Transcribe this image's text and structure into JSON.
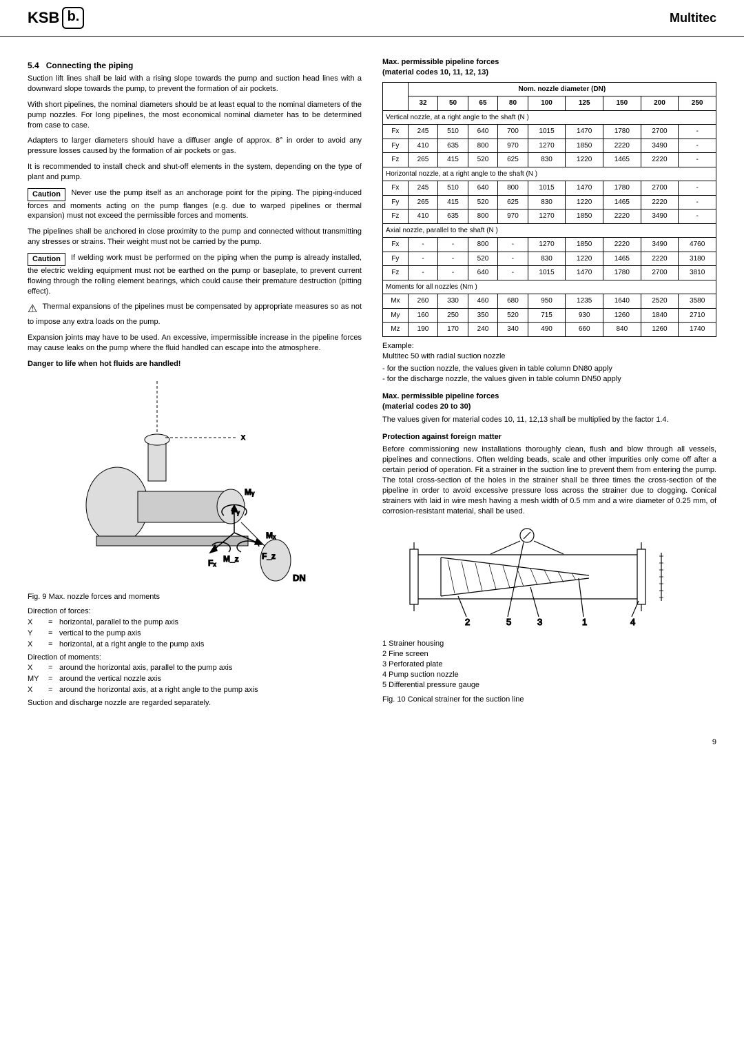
{
  "header": {
    "brand": "KSB",
    "logo_b": "b.",
    "product": "Multitec"
  },
  "left": {
    "sec_num": "5.4",
    "sec_title": "Connecting the piping",
    "p1": "Suction lift lines shall be laid with a rising slope towards the pump and suction head lines with a downward slope towards the pump, to prevent the formation of air pockets.",
    "p2": "With short pipelines, the nominal diameters should be at least equal to the nominal diameters of the pump nozzles. For long pipelines, the most economical nominal diameter has to be determined from case to case.",
    "p3": "Adapters to larger diameters should have a diffuser angle of approx. 8° in order to avoid any pressure losses caused by the formation of air pockets or gas.",
    "p4": "It is recommended to install check and shut-off elements in the system, depending on the type of plant and pump.",
    "caution1_label": "Caution",
    "caution1": "Never use the pump itself as an anchorage point for the piping. The piping-induced forces and moments acting on the pump flanges (e.g. due to warped pipelines or thermal expansion) must not exceed the permissible forces and moments.",
    "p5": "The pipelines shall be anchored in close proximity to the pump and connected without transmitting any stresses or strains. Their weight must not be carried by the pump.",
    "caution2_label": "Caution",
    "caution2": "If welding work must be performed on the piping when the pump is already installed, the electric welding equipment must not be earthed on the pump or baseplate, to prevent current flowing through the rolling element bearings, which could cause their premature destruction (pitting effect).",
    "warn1": "Thermal expansions of the pipelines must be compensated by appropriate measures so as not to impose any extra loads on the pump.",
    "p6": "Expansion joints may have to be used. An excessive, impermissible increase in the pipeline forces may cause leaks on the pump where the fluid handled can escape into the atmosphere.",
    "danger": "Danger to life when hot fluids are handled!",
    "fig9": "Fig. 9  Max. nozzle forces and moments",
    "df_head": "Direction of forces:",
    "df": [
      {
        "k": "X",
        "v": "horizontal, parallel to the pump axis"
      },
      {
        "k": "Y",
        "v": "vertical to the pump axis"
      },
      {
        "k": "X",
        "v": "horizontal, at a right angle to the pump axis"
      }
    ],
    "dm_head": "Direction of moments:",
    "dm": [
      {
        "k": "X",
        "v": "around the horizontal axis, parallel to the pump axis"
      },
      {
        "k": "MY",
        "v": "around the vertical nozzle axis"
      },
      {
        "k": "X",
        "v": "around the horizontal axis, at a right angle to the pump axis"
      }
    ],
    "p7": "Suction and discharge nozzle are regarded separately."
  },
  "right": {
    "t1_title1": "Max. permissible pipeline forces",
    "t1_title2": "(material codes 10, 11, 12, 13)",
    "table": {
      "header_span": "Nom. nozzle diameter (DN)",
      "cols": [
        "32",
        "50",
        "65",
        "80",
        "100",
        "125",
        "150",
        "200",
        "250"
      ],
      "sections": [
        {
          "label": "Vertical nozzle, at a right angle to the shaft (N )",
          "rows": [
            {
              "k": "Fx",
              "v": [
                "245",
                "510",
                "640",
                "700",
                "1015",
                "1470",
                "1780",
                "2700",
                "-"
              ]
            },
            {
              "k": "Fy",
              "v": [
                "410",
                "635",
                "800",
                "970",
                "1270",
                "1850",
                "2220",
                "3490",
                "-"
              ]
            },
            {
              "k": "Fz",
              "v": [
                "265",
                "415",
                "520",
                "625",
                "830",
                "1220",
                "1465",
                "2220",
                "-"
              ]
            }
          ]
        },
        {
          "label": "Horizontal nozzle, at a right angle to the shaft (N )",
          "rows": [
            {
              "k": "Fx",
              "v": [
                "245",
                "510",
                "640",
                "800",
                "1015",
                "1470",
                "1780",
                "2700",
                "-"
              ]
            },
            {
              "k": "Fy",
              "v": [
                "265",
                "415",
                "520",
                "625",
                "830",
                "1220",
                "1465",
                "2220",
                "-"
              ]
            },
            {
              "k": "Fz",
              "v": [
                "410",
                "635",
                "800",
                "970",
                "1270",
                "1850",
                "2220",
                "3490",
                "-"
              ]
            }
          ]
        },
        {
          "label": "Axial nozzle, parallel to the shaft (N )",
          "rows": [
            {
              "k": "Fx",
              "v": [
                "-",
                "-",
                "800",
                "-",
                "1270",
                "1850",
                "2220",
                "3490",
                "4760"
              ]
            },
            {
              "k": "Fy",
              "v": [
                "-",
                "-",
                "520",
                "-",
                "830",
                "1220",
                "1465",
                "2220",
                "3180"
              ]
            },
            {
              "k": "Fz",
              "v": [
                "-",
                "-",
                "640",
                "-",
                "1015",
                "1470",
                "1780",
                "2700",
                "3810"
              ]
            }
          ]
        },
        {
          "label": "Moments for all nozzles (Nm )",
          "rows": [
            {
              "k": "Mx",
              "v": [
                "260",
                "330",
                "460",
                "680",
                "950",
                "1235",
                "1640",
                "2520",
                "3580"
              ]
            },
            {
              "k": "My",
              "v": [
                "160",
                "250",
                "350",
                "520",
                "715",
                "930",
                "1260",
                "1840",
                "2710"
              ]
            },
            {
              "k": "Mz",
              "v": [
                "190",
                "170",
                "240",
                "340",
                "490",
                "660",
                "840",
                "1260",
                "1740"
              ]
            }
          ]
        }
      ]
    },
    "ex_head": "Example:",
    "ex_sub": "Multitec 50 with radial suction nozzle",
    "ex_items": [
      "for the suction nozzle, the values given in table column DN80 apply",
      "for the discharge nozzle, the values given in table column DN50 apply"
    ],
    "t2_title1": "Max. permissible pipeline forces",
    "t2_title2": "(material codes 20 to 30)",
    "p_mult": "The values given for material codes 10, 11, 12,13 shall be multiplied by the factor 1.4.",
    "prot_head": "Protection against foreign matter",
    "prot_p": "Before commissioning new installations thoroughly clean, flush and blow through all vessels, pipelines and connections. Often welding beads, scale and other impurities only come off after a certain period of operation. Fit a strainer in the suction line to prevent them from entering the pump. The total cross-section of the holes in the strainer shall be three times the cross-section of the pipeline in order to avoid excessive pressure loss across the strainer due to clogging. Conical strainers with laid in wire mesh having a mesh width of 0.5 mm and a wire diameter of 0.25 mm, of corrosion-resistant material, shall be used.",
    "legend": [
      "Strainer housing",
      "Fine screen",
      "Perforated plate",
      "Pump suction nozzle",
      "Differential pressure gauge"
    ],
    "fig10": "Fig. 10  Conical strainer for the suction line"
  },
  "pagenum": "9",
  "style": {
    "accent": "#000000",
    "bg": "#ffffff",
    "table_border": "#000000",
    "font_body": 11,
    "font_table": 10
  }
}
